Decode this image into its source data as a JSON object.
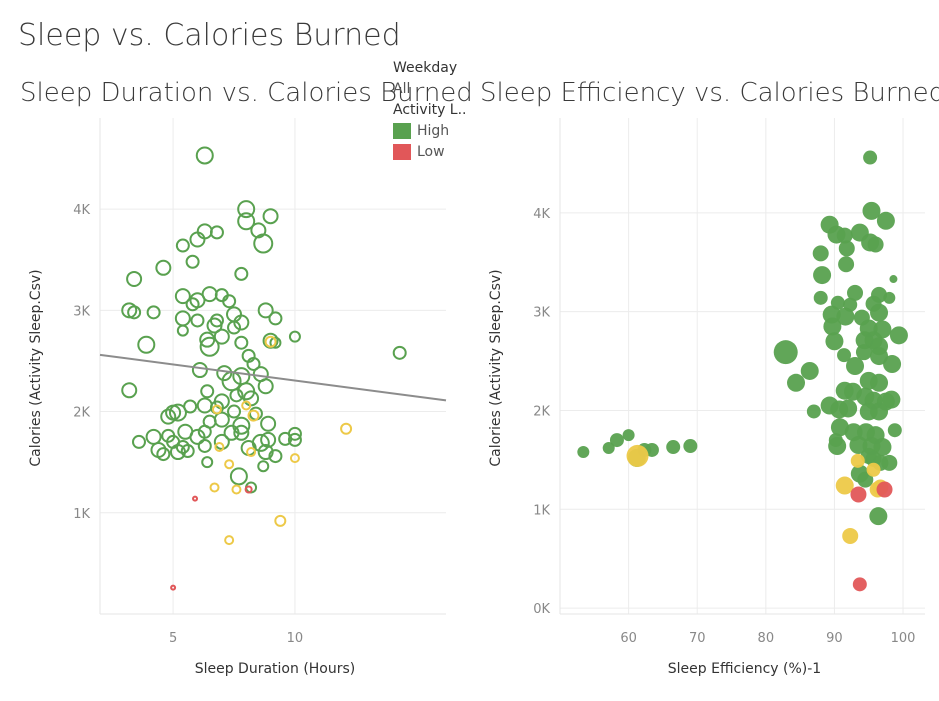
{
  "dashboard_title": "Sleep vs. Calories Burned",
  "legend": {
    "weekday_title": "Weekday",
    "weekday_value": "All",
    "activity_title": "Activity L..",
    "items": [
      {
        "label": "High",
        "color": "#59a14f"
      },
      {
        "label": "Low",
        "color": "#e15759"
      }
    ]
  },
  "colors": {
    "high": "#59a14f",
    "medium": "#edc948",
    "low": "#e15759",
    "trend": "#8c8c8c"
  },
  "chart_data": [
    {
      "type": "scatter",
      "title": "Sleep Duration vs. Calories Burned",
      "xlabel": "Sleep Duration (Hours)",
      "ylabel": "Calories (Activity Sleep.Csv)",
      "xlim": [
        2,
        16.2
      ],
      "ylim": [
        0,
        4900
      ],
      "xticks": [
        {
          "v": 5,
          "label": "5"
        },
        {
          "v": 10,
          "label": "10"
        }
      ],
      "yticks": [
        {
          "v": 1000,
          "label": "1K"
        },
        {
          "v": 2000,
          "label": "2K"
        },
        {
          "v": 3000,
          "label": "3K"
        },
        {
          "v": 4000,
          "label": "4K"
        }
      ],
      "marker": "hollow",
      "trendline": {
        "x": [
          2,
          16.2
        ],
        "y": [
          2560,
          2110
        ]
      },
      "points": [
        [
          6.3,
          4530,
          "h",
          8
        ],
        [
          8.0,
          4000,
          "h",
          8
        ],
        [
          9.0,
          3930,
          "h",
          7
        ],
        [
          8.0,
          3880,
          "h",
          8
        ],
        [
          8.7,
          3660,
          "h",
          9
        ],
        [
          8.5,
          3790,
          "h",
          7
        ],
        [
          6.3,
          3780,
          "h",
          7
        ],
        [
          6.8,
          3770,
          "h",
          6
        ],
        [
          6.0,
          3700,
          "h",
          7
        ],
        [
          5.4,
          3640,
          "h",
          6
        ],
        [
          5.8,
          3480,
          "h",
          6
        ],
        [
          7.8,
          3360,
          "h",
          6
        ],
        [
          4.6,
          3420,
          "h",
          7
        ],
        [
          3.4,
          3310,
          "h",
          7
        ],
        [
          5.4,
          3140,
          "h",
          7
        ],
        [
          6.5,
          3160,
          "h",
          7
        ],
        [
          7.0,
          3150,
          "h",
          6
        ],
        [
          5.8,
          3060,
          "h",
          6
        ],
        [
          6.0,
          3100,
          "h",
          7
        ],
        [
          3.2,
          3000,
          "h",
          7
        ],
        [
          3.4,
          2980,
          "h",
          6
        ],
        [
          4.2,
          2980,
          "h",
          6
        ],
        [
          7.3,
          3090,
          "h",
          6
        ],
        [
          8.8,
          3000,
          "h",
          7
        ],
        [
          7.5,
          2960,
          "h",
          7
        ],
        [
          5.4,
          2920,
          "h",
          7
        ],
        [
          6.0,
          2900,
          "h",
          6
        ],
        [
          6.8,
          2900,
          "h",
          6
        ],
        [
          7.8,
          2880,
          "h",
          7
        ],
        [
          9.2,
          2920,
          "h",
          6
        ],
        [
          7.5,
          2830,
          "h",
          6
        ],
        [
          6.7,
          2850,
          "h",
          7
        ],
        [
          5.4,
          2800,
          "h",
          5
        ],
        [
          9.0,
          2700,
          "h",
          7
        ],
        [
          10.0,
          2740,
          "h",
          5
        ],
        [
          3.9,
          2660,
          "h",
          8
        ],
        [
          6.4,
          2710,
          "h",
          7
        ],
        [
          6.5,
          2640,
          "h",
          9
        ],
        [
          7.0,
          2740,
          "h",
          7
        ],
        [
          7.8,
          2680,
          "h",
          6
        ],
        [
          9.2,
          2680,
          "h",
          5
        ],
        [
          14.3,
          2580,
          "h",
          6
        ],
        [
          8.1,
          2550,
          "h",
          6
        ],
        [
          8.3,
          2470,
          "h",
          6
        ],
        [
          8.6,
          2370,
          "h",
          7
        ],
        [
          7.8,
          2350,
          "h",
          8
        ],
        [
          7.1,
          2380,
          "h",
          7
        ],
        [
          6.1,
          2410,
          "h",
          7
        ],
        [
          7.4,
          2300,
          "h",
          9
        ],
        [
          6.4,
          2200,
          "h",
          6
        ],
        [
          8.0,
          2200,
          "h",
          8
        ],
        [
          8.8,
          2250,
          "h",
          7
        ],
        [
          3.2,
          2210,
          "h",
          7
        ],
        [
          7.0,
          2100,
          "h",
          7
        ],
        [
          7.6,
          2160,
          "h",
          6
        ],
        [
          8.2,
          2130,
          "h",
          7
        ],
        [
          6.3,
          2060,
          "h",
          7
        ],
        [
          6.8,
          2040,
          "h",
          6
        ],
        [
          5.7,
          2050,
          "h",
          6
        ],
        [
          5.0,
          1990,
          "h",
          7
        ],
        [
          5.2,
          1990,
          "h",
          8
        ],
        [
          4.8,
          1950,
          "h",
          7
        ],
        [
          7.5,
          2000,
          "h",
          6
        ],
        [
          8.4,
          1980,
          "h",
          6
        ],
        [
          7.0,
          1920,
          "h",
          7
        ],
        [
          6.5,
          1900,
          "h",
          6
        ],
        [
          8.9,
          1880,
          "h",
          7
        ],
        [
          7.8,
          1860,
          "h",
          8
        ],
        [
          5.5,
          1800,
          "h",
          7
        ],
        [
          6.3,
          1800,
          "h",
          6
        ],
        [
          7.4,
          1790,
          "h",
          7
        ],
        [
          7.8,
          1790,
          "h",
          7
        ],
        [
          4.8,
          1760,
          "h",
          6
        ],
        [
          4.2,
          1750,
          "h",
          7
        ],
        [
          3.6,
          1700,
          "h",
          6
        ],
        [
          5.0,
          1700,
          "h",
          6
        ],
        [
          6.0,
          1750,
          "h",
          7
        ],
        [
          7.0,
          1700,
          "h",
          7
        ],
        [
          8.6,
          1690,
          "h",
          8
        ],
        [
          8.9,
          1720,
          "h",
          7
        ],
        [
          9.6,
          1730,
          "h",
          6
        ],
        [
          10.0,
          1720,
          "h",
          6
        ],
        [
          10.0,
          1780,
          "h",
          6
        ],
        [
          4.4,
          1620,
          "h",
          7
        ],
        [
          4.6,
          1580,
          "h",
          6
        ],
        [
          5.2,
          1600,
          "h",
          7
        ],
        [
          5.4,
          1650,
          "h",
          6
        ],
        [
          5.6,
          1610,
          "h",
          6
        ],
        [
          6.3,
          1660,
          "h",
          6
        ],
        [
          8.1,
          1640,
          "h",
          7
        ],
        [
          8.8,
          1600,
          "h",
          7
        ],
        [
          9.2,
          1560,
          "h",
          6
        ],
        [
          6.4,
          1500,
          "h",
          5
        ],
        [
          8.7,
          1460,
          "h",
          5
        ],
        [
          7.7,
          1360,
          "h",
          8
        ],
        [
          8.2,
          1250,
          "h",
          5
        ],
        [
          9.0,
          2690,
          "m",
          5
        ],
        [
          8.3,
          1960,
          "m",
          5
        ],
        [
          8.0,
          2060,
          "m",
          4
        ],
        [
          6.8,
          2020,
          "m",
          4
        ],
        [
          6.9,
          1650,
          "m",
          4
        ],
        [
          8.2,
          1600,
          "m",
          4
        ],
        [
          10.0,
          1540,
          "m",
          4
        ],
        [
          7.3,
          1480,
          "m",
          4
        ],
        [
          12.1,
          1830,
          "m",
          5
        ],
        [
          7.6,
          1230,
          "m",
          4
        ],
        [
          6.7,
          1250,
          "m",
          4
        ],
        [
          9.4,
          920,
          "m",
          5
        ],
        [
          7.3,
          730,
          "m",
          4
        ],
        [
          8.1,
          1230,
          "r",
          3
        ],
        [
          5.9,
          1140,
          "r",
          2
        ],
        [
          5.0,
          260,
          "r",
          2
        ]
      ]
    },
    {
      "type": "scatter",
      "title": "Sleep Efficiency vs. Calories Burned",
      "xlabel": "Sleep Efficiency (%)-1",
      "ylabel": "Calories (Activity Sleep.Csv)",
      "xlim": [
        50,
        103.2
      ],
      "ylim": [
        -60,
        4960
      ],
      "xticks": [
        {
          "v": 60,
          "label": "60"
        },
        {
          "v": 70,
          "label": "70"
        },
        {
          "v": 80,
          "label": "80"
        },
        {
          "v": 90,
          "label": "90"
        },
        {
          "v": 100,
          "label": "100"
        }
      ],
      "yticks": [
        {
          "v": 0,
          "label": "0K"
        },
        {
          "v": 1000,
          "label": "1K"
        },
        {
          "v": 2000,
          "label": "2K"
        },
        {
          "v": 3000,
          "label": "3K"
        },
        {
          "v": 4000,
          "label": "4K"
        }
      ],
      "marker": "filled",
      "points": [
        [
          95.2,
          4560,
          "h",
          7
        ],
        [
          95.4,
          4020,
          "h",
          9
        ],
        [
          97.5,
          3920,
          "h",
          9
        ],
        [
          89.3,
          3880,
          "h",
          9
        ],
        [
          90.3,
          3780,
          "h",
          9
        ],
        [
          91.5,
          3770,
          "h",
          8
        ],
        [
          93.7,
          3800,
          "h",
          9
        ],
        [
          95.2,
          3700,
          "h",
          9
        ],
        [
          96.0,
          3680,
          "h",
          8
        ],
        [
          91.8,
          3640,
          "h",
          8
        ],
        [
          88.0,
          3590,
          "h",
          8
        ],
        [
          91.7,
          3480,
          "h",
          8
        ],
        [
          88.2,
          3370,
          "h",
          9
        ],
        [
          98.6,
          3330,
          "h",
          4
        ],
        [
          93.0,
          3190,
          "h",
          8
        ],
        [
          96.5,
          3170,
          "h",
          8
        ],
        [
          88.0,
          3140,
          "h",
          7
        ],
        [
          98.0,
          3140,
          "h",
          6
        ],
        [
          90.5,
          3090,
          "h",
          7
        ],
        [
          92.3,
          3070,
          "h",
          7
        ],
        [
          95.7,
          3080,
          "h",
          8
        ],
        [
          89.6,
          2970,
          "h",
          9
        ],
        [
          91.6,
          2950,
          "h",
          9
        ],
        [
          94.0,
          2940,
          "h",
          8
        ],
        [
          96.5,
          2990,
          "h",
          9
        ],
        [
          89.7,
          2850,
          "h",
          9
        ],
        [
          95.0,
          2830,
          "h",
          9
        ],
        [
          97.0,
          2820,
          "h",
          9
        ],
        [
          99.4,
          2760,
          "h",
          9
        ],
        [
          90.0,
          2700,
          "h",
          9
        ],
        [
          94.4,
          2710,
          "h",
          9
        ],
        [
          95.7,
          2710,
          "h",
          9
        ],
        [
          96.5,
          2650,
          "h",
          9
        ],
        [
          82.9,
          2590,
          "h",
          12
        ],
        [
          91.4,
          2560,
          "h",
          7
        ],
        [
          94.3,
          2590,
          "h",
          8
        ],
        [
          96.5,
          2550,
          "h",
          9
        ],
        [
          98.4,
          2470,
          "h",
          9
        ],
        [
          86.4,
          2400,
          "h",
          9
        ],
        [
          84.4,
          2280,
          "h",
          9
        ],
        [
          93.0,
          2450,
          "h",
          9
        ],
        [
          95.0,
          2300,
          "h",
          9
        ],
        [
          96.5,
          2280,
          "h",
          9
        ],
        [
          91.5,
          2200,
          "h",
          9
        ],
        [
          92.7,
          2190,
          "h",
          9
        ],
        [
          94.5,
          2140,
          "h",
          9
        ],
        [
          95.7,
          2100,
          "h",
          9
        ],
        [
          97.5,
          2090,
          "h",
          9
        ],
        [
          98.3,
          2110,
          "h",
          9
        ],
        [
          89.3,
          2050,
          "h",
          9
        ],
        [
          90.7,
          2010,
          "h",
          9
        ],
        [
          92.0,
          2020,
          "h",
          9
        ],
        [
          95.0,
          1990,
          "h",
          9
        ],
        [
          96.5,
          1990,
          "h",
          9
        ],
        [
          87.0,
          1990,
          "h",
          7
        ],
        [
          98.8,
          1800,
          "h",
          7
        ],
        [
          90.8,
          1830,
          "h",
          9
        ],
        [
          92.8,
          1780,
          "h",
          9
        ],
        [
          94.6,
          1780,
          "h",
          9
        ],
        [
          96.0,
          1750,
          "h",
          9
        ],
        [
          90.2,
          1700,
          "h",
          7
        ],
        [
          93.5,
          1650,
          "h",
          9
        ],
        [
          95.4,
          1640,
          "h",
          9
        ],
        [
          97.0,
          1630,
          "h",
          9
        ],
        [
          90.4,
          1640,
          "h",
          9
        ],
        [
          95.0,
          1540,
          "h",
          8
        ],
        [
          95.7,
          1510,
          "h",
          8
        ],
        [
          96.7,
          1470,
          "h",
          8
        ],
        [
          98.0,
          1470,
          "h",
          8
        ],
        [
          93.7,
          1360,
          "h",
          9
        ],
        [
          94.5,
          1300,
          "h",
          8
        ],
        [
          96.4,
          930,
          "h",
          9
        ],
        [
          53.4,
          1580,
          "h",
          6
        ],
        [
          57.1,
          1620,
          "h",
          6
        ],
        [
          58.3,
          1700,
          "h",
          7
        ],
        [
          60.0,
          1750,
          "h",
          6
        ],
        [
          61.2,
          1520,
          "h",
          9
        ],
        [
          62.3,
          1600,
          "h",
          7
        ],
        [
          63.4,
          1600,
          "h",
          7
        ],
        [
          66.5,
          1630,
          "h",
          7
        ],
        [
          69.0,
          1640,
          "h",
          7
        ],
        [
          61.3,
          1540,
          "m",
          11
        ],
        [
          93.4,
          1490,
          "m",
          7
        ],
        [
          95.7,
          1400,
          "m",
          7
        ],
        [
          91.5,
          1240,
          "m",
          9
        ],
        [
          96.3,
          1200,
          "m",
          8
        ],
        [
          96.7,
          1220,
          "m",
          8
        ],
        [
          92.3,
          730,
          "m",
          8
        ],
        [
          97.3,
          1200,
          "r",
          8
        ],
        [
          93.5,
          1150,
          "r",
          8
        ],
        [
          93.7,
          240,
          "r",
          7
        ]
      ]
    }
  ]
}
